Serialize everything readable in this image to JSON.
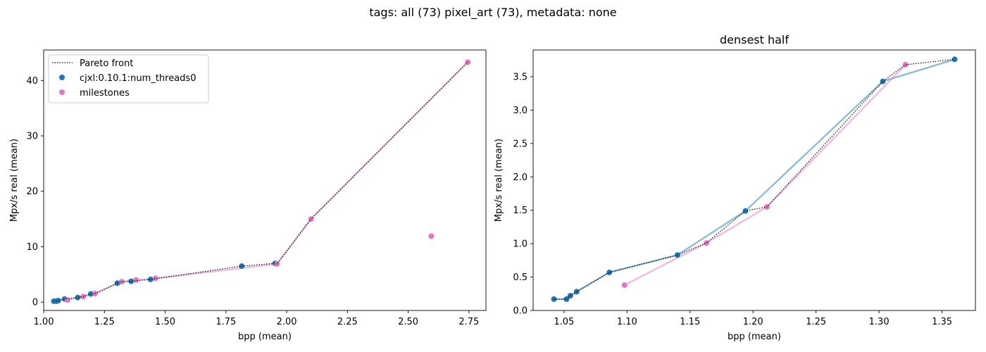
{
  "figure": {
    "title": "tags: all (73) pixel_art (73), metadata: none"
  },
  "colors": {
    "cjxl": "#1f77b4",
    "milestones": "#e377c2",
    "pareto": "#000000"
  },
  "chart_data": [
    {
      "type": "scatter",
      "title": "",
      "xlabel": "bpp (mean)",
      "ylabel": "Mpx/s real (mean)",
      "xlim": [
        1.0,
        2.82
      ],
      "ylim": [
        -1.5,
        45.5
      ],
      "xticks": [
        "1.00",
        "1.25",
        "1.50",
        "1.75",
        "2.00",
        "2.25",
        "2.50",
        "2.75"
      ],
      "yticks": [
        "0",
        "10",
        "20",
        "30",
        "40"
      ],
      "grid": false,
      "legend": {
        "position": "top-left",
        "entries": [
          "Pareto front",
          "cjxl:0.10.1:num_threads0",
          "milestones"
        ]
      },
      "series": [
        {
          "name": "cjxl:0.10.1:num_threads0",
          "color": "#1f77b4",
          "line": false,
          "points": [
            [
              1.042,
              0.17
            ],
            [
              1.052,
              0.17
            ],
            [
              1.055,
              0.22
            ],
            [
              1.06,
              0.28
            ],
            [
              1.086,
              0.57
            ],
            [
              1.14,
              0.83
            ],
            [
              1.194,
              1.49
            ],
            [
              1.303,
              3.43
            ],
            [
              1.36,
              3.76
            ],
            [
              1.44,
              4.1
            ],
            [
              1.815,
              6.5
            ],
            [
              1.952,
              7.0
            ]
          ]
        },
        {
          "name": "milestones",
          "color": "#e377c2",
          "line": true,
          "points": [
            [
              1.098,
              0.38
            ],
            [
              1.163,
              1.01
            ],
            [
              1.211,
              1.55
            ],
            [
              1.321,
              3.68
            ],
            [
              1.38,
              4.0
            ],
            [
              1.46,
              4.3
            ],
            [
              1.96,
              6.9
            ],
            [
              2.1,
              15.0
            ],
            [
              2.745,
              43.3
            ]
          ],
          "extra_points": [
            [
              2.595,
              11.9
            ]
          ]
        }
      ],
      "pareto": [
        [
          1.042,
          0.17
        ],
        [
          1.052,
          0.17
        ],
        [
          1.055,
          0.22
        ],
        [
          1.06,
          0.28
        ],
        [
          1.086,
          0.57
        ],
        [
          1.14,
          0.83
        ],
        [
          1.163,
          1.01
        ],
        [
          1.194,
          1.49
        ],
        [
          1.211,
          1.55
        ],
        [
          1.303,
          3.43
        ],
        [
          1.321,
          3.68
        ],
        [
          1.36,
          3.76
        ],
        [
          1.44,
          4.1
        ],
        [
          1.815,
          6.5
        ],
        [
          1.952,
          7.0
        ],
        [
          1.96,
          6.9
        ],
        [
          2.1,
          15.0
        ],
        [
          2.745,
          43.3
        ]
      ]
    },
    {
      "type": "scatter",
      "title": "densest half",
      "xlabel": "bpp (mean)",
      "ylabel": "Mpx/s real (mean)",
      "xlim": [
        1.0255,
        1.3765
      ],
      "ylim": [
        0.0,
        3.9
      ],
      "xticks": [
        "1.05",
        "1.10",
        "1.15",
        "1.20",
        "1.25",
        "1.30",
        "1.35"
      ],
      "yticks": [
        "0.0",
        "0.5",
        "1.0",
        "1.5",
        "2.0",
        "2.5",
        "3.0",
        "3.5"
      ],
      "grid": false,
      "series": [
        {
          "name": "cjxl:0.10.1:num_threads0",
          "color": "#1f77b4",
          "line": true,
          "points": [
            [
              1.042,
              0.17
            ],
            [
              1.052,
              0.17
            ],
            [
              1.055,
              0.22
            ],
            [
              1.06,
              0.28
            ],
            [
              1.086,
              0.57
            ],
            [
              1.14,
              0.83
            ],
            [
              1.194,
              1.49
            ],
            [
              1.303,
              3.43
            ],
            [
              1.36,
              3.76
            ]
          ]
        },
        {
          "name": "milestones",
          "color": "#e377c2",
          "line": true,
          "points": [
            [
              1.098,
              0.38
            ],
            [
              1.163,
              1.01
            ],
            [
              1.211,
              1.55
            ],
            [
              1.321,
              3.68
            ]
          ]
        }
      ],
      "pareto": [
        [
          1.042,
          0.17
        ],
        [
          1.052,
          0.17
        ],
        [
          1.055,
          0.22
        ],
        [
          1.06,
          0.28
        ],
        [
          1.086,
          0.57
        ],
        [
          1.14,
          0.83
        ],
        [
          1.163,
          1.01
        ],
        [
          1.194,
          1.49
        ],
        [
          1.211,
          1.55
        ],
        [
          1.303,
          3.43
        ],
        [
          1.321,
          3.68
        ],
        [
          1.36,
          3.76
        ]
      ]
    }
  ]
}
